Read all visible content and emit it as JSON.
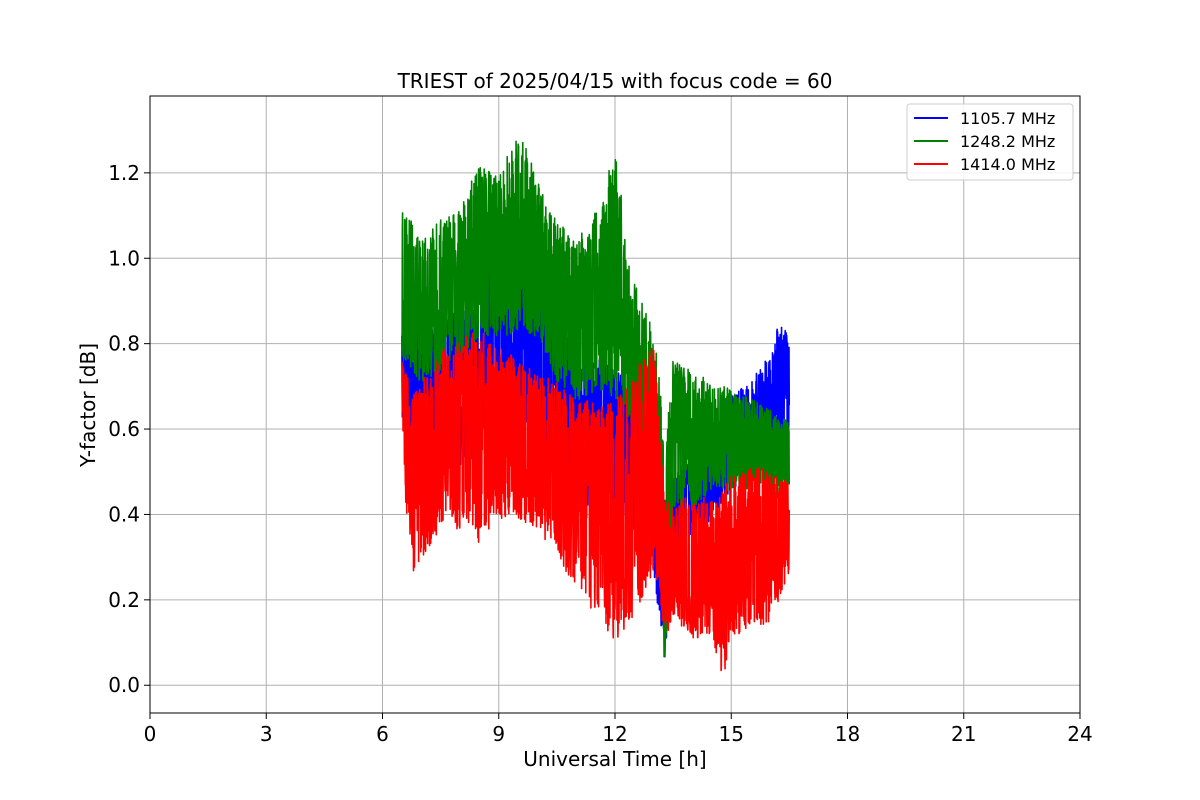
{
  "chart_data": {
    "type": "line",
    "title": "TRIEST of 2025/04/15 with focus code = 60",
    "xlabel": "Universal Time [h]",
    "ylabel": "Y-factor [dB]",
    "xlim": [
      0,
      24
    ],
    "ylim": [
      -0.065,
      1.38
    ],
    "xticks": [
      0,
      3,
      6,
      9,
      12,
      15,
      18,
      21,
      24
    ],
    "xtick_labels": [
      "0",
      "3",
      "6",
      "9",
      "12",
      "15",
      "18",
      "21",
      "24"
    ],
    "yticks": [
      0.0,
      0.2,
      0.4,
      0.6,
      0.8,
      1.0,
      1.2
    ],
    "ytick_labels": [
      "0.0",
      "0.2",
      "0.4",
      "0.6",
      "0.8",
      "1.0",
      "1.2"
    ],
    "grid": true,
    "legend_position": "top-right",
    "series": [
      {
        "name": "1105.7 MHz",
        "color": "#0000ff",
        "envelope": [
          [
            6.5,
            0.62,
            0.83
          ],
          [
            7.0,
            0.52,
            0.88
          ],
          [
            7.5,
            0.48,
            0.85
          ],
          [
            8.0,
            0.5,
            0.9
          ],
          [
            8.5,
            0.55,
            0.95
          ],
          [
            9.0,
            0.6,
            1.05
          ],
          [
            9.5,
            0.6,
            1.12
          ],
          [
            10.0,
            0.55,
            1.05
          ],
          [
            10.5,
            0.45,
            0.9
          ],
          [
            11.0,
            0.4,
            0.8
          ],
          [
            11.5,
            0.42,
            0.78
          ],
          [
            12.0,
            0.4,
            0.75
          ],
          [
            12.5,
            0.35,
            0.7
          ],
          [
            13.0,
            0.25,
            0.6
          ],
          [
            13.3,
            0.03,
            0.45
          ],
          [
            13.5,
            0.3,
            0.5
          ],
          [
            14.0,
            0.35,
            0.55
          ],
          [
            14.5,
            0.38,
            0.62
          ],
          [
            15.0,
            0.45,
            0.68
          ],
          [
            15.5,
            0.48,
            0.72
          ],
          [
            16.0,
            0.52,
            0.78
          ],
          [
            16.3,
            0.55,
            0.88
          ],
          [
            16.5,
            0.58,
            0.8
          ]
        ]
      },
      {
        "name": "1248.2 MHz",
        "color": "#008000",
        "envelope": [
          [
            6.5,
            0.75,
            1.14
          ],
          [
            7.0,
            0.7,
            1.05
          ],
          [
            7.5,
            0.72,
            1.1
          ],
          [
            8.0,
            0.75,
            1.12
          ],
          [
            8.5,
            0.8,
            1.24
          ],
          [
            9.0,
            0.8,
            1.2
          ],
          [
            9.5,
            0.82,
            1.32
          ],
          [
            10.0,
            0.8,
            1.2
          ],
          [
            10.5,
            0.7,
            1.1
          ],
          [
            11.0,
            0.65,
            1.05
          ],
          [
            11.5,
            0.68,
            1.12
          ],
          [
            12.0,
            0.65,
            1.27
          ],
          [
            12.5,
            0.6,
            0.95
          ],
          [
            13.0,
            0.4,
            0.85
          ],
          [
            13.3,
            0.0,
            0.6
          ],
          [
            13.5,
            0.4,
            0.78
          ],
          [
            14.0,
            0.4,
            0.74
          ],
          [
            14.5,
            0.45,
            0.72
          ],
          [
            15.0,
            0.45,
            0.7
          ],
          [
            15.5,
            0.45,
            0.68
          ],
          [
            16.0,
            0.42,
            0.65
          ],
          [
            16.5,
            0.45,
            0.62
          ]
        ]
      },
      {
        "name": "1414.0 MHz",
        "color": "#ff0000",
        "envelope": [
          [
            6.5,
            0.47,
            0.77
          ],
          [
            6.8,
            0.25,
            0.7
          ],
          [
            7.0,
            0.27,
            0.72
          ],
          [
            7.5,
            0.35,
            0.8
          ],
          [
            8.0,
            0.35,
            0.82
          ],
          [
            8.5,
            0.32,
            0.85
          ],
          [
            9.0,
            0.38,
            0.8
          ],
          [
            9.5,
            0.38,
            0.78
          ],
          [
            10.0,
            0.35,
            0.74
          ],
          [
            10.5,
            0.3,
            0.72
          ],
          [
            11.0,
            0.2,
            0.68
          ],
          [
            11.5,
            0.15,
            0.68
          ],
          [
            12.0,
            0.08,
            0.68
          ],
          [
            12.5,
            0.15,
            0.75
          ],
          [
            13.0,
            0.25,
            0.82
          ],
          [
            13.3,
            0.1,
            0.45
          ],
          [
            13.5,
            0.15,
            0.45
          ],
          [
            14.0,
            0.1,
            0.45
          ],
          [
            14.5,
            0.1,
            0.45
          ],
          [
            14.8,
            0.0,
            0.48
          ],
          [
            15.0,
            0.1,
            0.5
          ],
          [
            15.5,
            0.12,
            0.52
          ],
          [
            16.0,
            0.14,
            0.52
          ],
          [
            16.5,
            0.25,
            0.48
          ]
        ]
      }
    ]
  }
}
